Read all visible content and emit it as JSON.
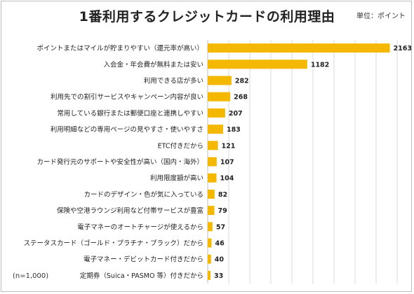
{
  "chart_data": {
    "type": "bar",
    "orientation": "horizontal",
    "title": "1番利用するクレジットカードの利用理由",
    "unit_note": "単位：ポイント",
    "sample_note": "(n=1,000)",
    "xlim": [
      0,
      2250
    ],
    "grid": true,
    "bar_color": "#F5B800",
    "grid_color": "#d9d9d9",
    "categories": [
      "ポイントまたはマイルが貯まりやすい（還元率が高い）",
      "入会金・年会費が無料または安い",
      "利用できる店が多い",
      "利用先での割引サービスやキャンペーン内容が良い",
      "常用している銀行または郵便口座と連携しやすい",
      "利用明細などの専用ページの見やすさ・使いやすさ",
      "ETC付きだから",
      "カード発行元のサポートや安全性が高い（国内・海外）",
      "利用限度額が高い",
      "カードのデザイン・色が気に入っている",
      "保険や空港ラウンジ利用など付帯サービスが豊富",
      "電子マネーのオートチャージが使えるから",
      "ステータスカード（ゴールド・プラチナ・ブラック）だから",
      "電子マネー・デビットカード付きだから",
      "定期券（Suica・PASMO 等）付きだから"
    ],
    "values": [
      2163,
      1182,
      282,
      268,
      207,
      183,
      121,
      107,
      104,
      82,
      79,
      57,
      46,
      40,
      33
    ]
  }
}
